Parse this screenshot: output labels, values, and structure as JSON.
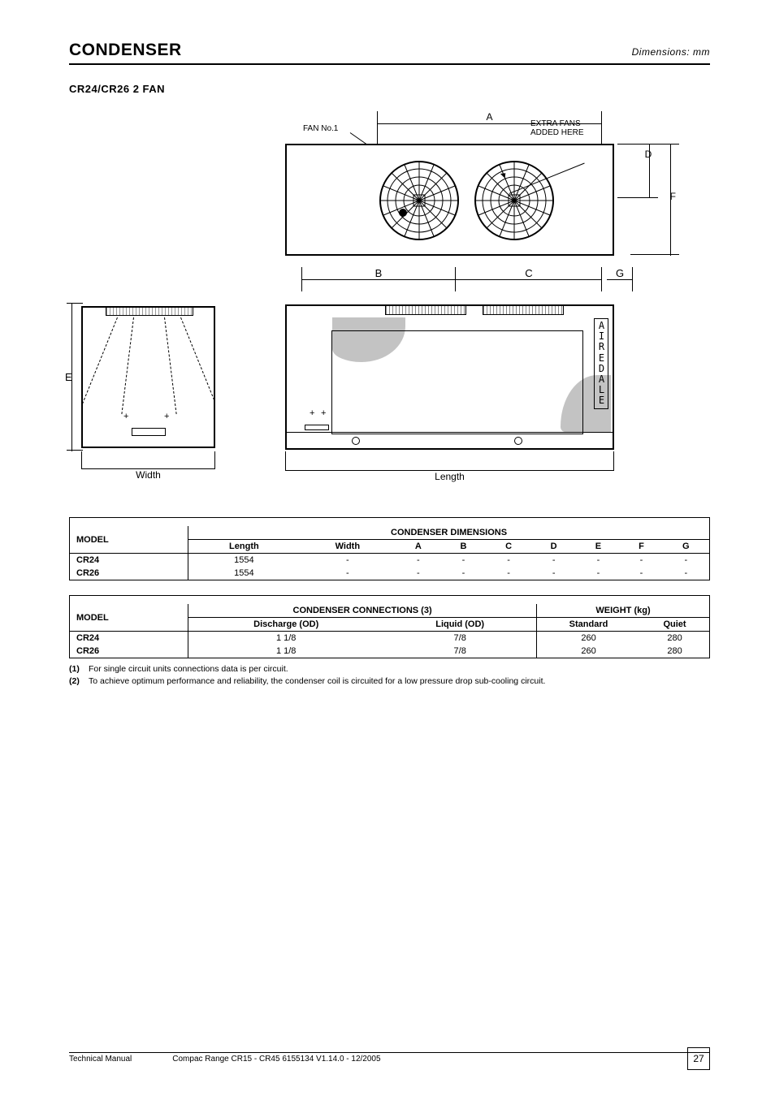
{
  "header": {
    "title_left": "CONDENSER",
    "title_right": "Dimensions: mm"
  },
  "section_title": "CR24/CR26 2 FAN",
  "diagram": {
    "fan_label_1": "FAN No.1",
    "fan_label_2": "EXTRA FANS\nADDED HERE",
    "dim_A": "A",
    "dim_B": "B",
    "dim_C": "C",
    "dim_D": "D",
    "dim_E": "E",
    "dim_F": "F",
    "dim_G": "G",
    "width_label": "Width",
    "length_label": "Length",
    "brand_vertical": "AIREDALE"
  },
  "table1": {
    "header_model": "MODEL",
    "header_dims": "CONDENSER DIMENSIONS",
    "columns": [
      "Length",
      "Width",
      "A",
      "B",
      "C",
      "D",
      "E",
      "F",
      "G"
    ],
    "rows": [
      {
        "model": "CR24",
        "values": [
          "1554",
          "-",
          "-",
          "-",
          "-",
          "-",
          "-",
          "-",
          "-"
        ]
      },
      {
        "model": "CR26",
        "values": [
          "1554",
          "-",
          "-",
          "-",
          "-",
          "-",
          "-",
          "-",
          "-"
        ]
      }
    ]
  },
  "table2": {
    "header_model": "MODEL",
    "header_conn": "CONDENSER CONNECTIONS (3)",
    "header_weight": "WEIGHT (kg)",
    "conn_cols": [
      "Discharge (OD)",
      "Liquid (OD)"
    ],
    "weight_cols": [
      "Standard",
      "Quiet"
    ],
    "rows": [
      {
        "model": "CR24",
        "conns": [
          "1 1/8",
          "7/8"
        ],
        "weights": [
          "260",
          "280"
        ]
      },
      {
        "model": "CR26",
        "conns": [
          "1 1/8",
          "7/8"
        ],
        "weights": [
          "260",
          "280"
        ]
      }
    ]
  },
  "notes": {
    "n1": "For single circuit units connections data is per circuit.",
    "n2": "To achieve optimum performance and reliability, the condenser coil is circuited for a low pressure drop sub-cooling circuit."
  },
  "footer": {
    "left": "Technical Manual",
    "mid": "Compac Range CR15 - CR45  6155134 V1.14.0 - 12/2005",
    "page": "27"
  },
  "style": {
    "page_bg": "#ffffff",
    "text_color": "#000000",
    "line_color": "#000000",
    "grey_fill": "#aaaaaa"
  }
}
